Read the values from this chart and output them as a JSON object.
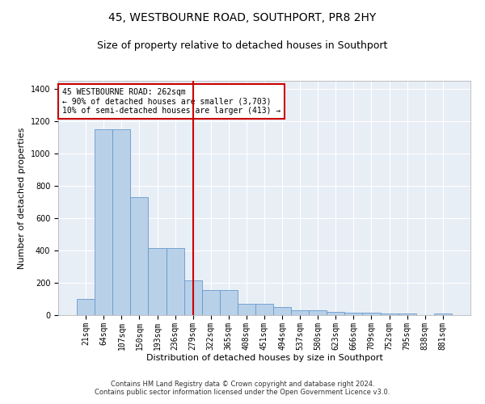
{
  "title": "45, WESTBOURNE ROAD, SOUTHPORT, PR8 2HY",
  "subtitle": "Size of property relative to detached houses in Southport",
  "xlabel": "Distribution of detached houses by size in Southport",
  "ylabel": "Number of detached properties",
  "footer": "Contains HM Land Registry data © Crown copyright and database right 2024.\nContains public sector information licensed under the Open Government Licence v3.0.",
  "categories": [
    "21sqm",
    "64sqm",
    "107sqm",
    "150sqm",
    "193sqm",
    "236sqm",
    "279sqm",
    "322sqm",
    "365sqm",
    "408sqm",
    "451sqm",
    "494sqm",
    "537sqm",
    "580sqm",
    "623sqm",
    "666sqm",
    "709sqm",
    "752sqm",
    "795sqm",
    "838sqm",
    "881sqm"
  ],
  "values": [
    100,
    1150,
    1150,
    730,
    415,
    415,
    215,
    155,
    155,
    70,
    70,
    50,
    30,
    30,
    20,
    15,
    15,
    10,
    10,
    0,
    10
  ],
  "bar_color": "#b8d0e8",
  "bar_edge_color": "#6699cc",
  "vline_x_index": 6,
  "vline_color": "#cc0000",
  "annotation_text": "45 WESTBOURNE ROAD: 262sqm\n← 90% of detached houses are smaller (3,703)\n10% of semi-detached houses are larger (413) →",
  "annotation_box_color": "#ffffff",
  "annotation_box_edge_color": "#cc0000",
  "ylim": [
    0,
    1450
  ],
  "yticks": [
    0,
    200,
    400,
    600,
    800,
    1000,
    1200,
    1400
  ],
  "plot_background_color": "#e8eef5",
  "title_fontsize": 10,
  "subtitle_fontsize": 9,
  "ylabel_fontsize": 8,
  "xlabel_fontsize": 8,
  "tick_fontsize": 7,
  "ann_fontsize": 7,
  "footer_fontsize": 6
}
